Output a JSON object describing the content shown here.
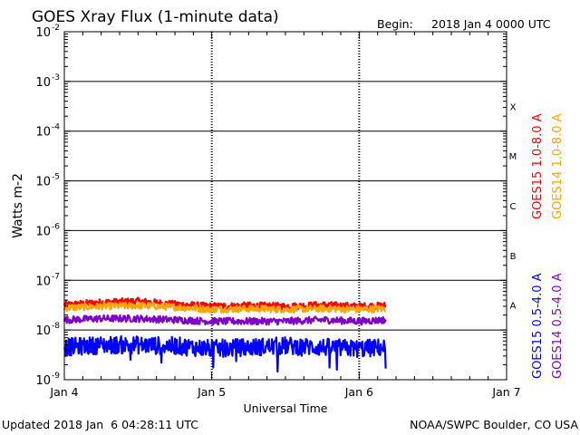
{
  "header": {
    "title": "GOES Xray Flux (1-minute data)",
    "begin_label": "Begin:",
    "begin_value": "2018 Jan 4 0000 UTC"
  },
  "footer": {
    "updated": "Updated 2018 Jan  6 04:28:11 UTC",
    "credit": "NOAA/SWPC Boulder, CO USA"
  },
  "legend": {
    "right_group_1": [
      {
        "text": "GOES15 1.0-8.0 A",
        "color": "#ff0000"
      },
      {
        "text": "GOES14 1.0-8.0 A",
        "color": "#ffa500"
      }
    ],
    "right_group_2": [
      {
        "text": "GOES15 0.5-4.0 A",
        "color": "#0000ff"
      },
      {
        "text": "GOES14 0.5-4.0 A",
        "color": "#7f00c8"
      }
    ]
  },
  "chart_data": {
    "type": "line",
    "title": "GOES Xray Flux (1-minute data)",
    "xlabel": "Universal Time",
    "ylabel": "Watts m-2",
    "x_tick_labels": [
      "Jan 4",
      "Jan 5",
      "Jan 6",
      "Jan 7"
    ],
    "xlim_days": [
      0,
      3
    ],
    "y_scale": "log",
    "ylim": [
      1e-09,
      0.01
    ],
    "y_ticks": [
      {
        "base": "10",
        "exp": "-9",
        "value": 1e-09
      },
      {
        "base": "10",
        "exp": "-8",
        "value": 1e-08
      },
      {
        "base": "10",
        "exp": "-7",
        "value": 1e-07
      },
      {
        "base": "10",
        "exp": "-6",
        "value": 1e-06
      },
      {
        "base": "10",
        "exp": "-5",
        "value": 1e-05
      },
      {
        "base": "10",
        "exp": "-4",
        "value": 0.0001
      },
      {
        "base": "10",
        "exp": "-3",
        "value": 0.001
      },
      {
        "base": "10",
        "exp": "-2",
        "value": 0.01
      }
    ],
    "flare_classes": [
      {
        "label": "A",
        "value": 1e-08
      },
      {
        "label": "B",
        "value": 1e-07
      },
      {
        "label": "C",
        "value": 1e-06
      },
      {
        "label": "M",
        "value": 1e-05
      },
      {
        "label": "X",
        "value": 0.0001
      }
    ],
    "series": [
      {
        "name": "GOES15 1.0-8.0 A",
        "color": "#ff0000",
        "x": [
          0,
          0.25,
          0.5,
          0.75,
          1.0,
          1.25,
          1.5,
          1.75,
          2.0,
          2.18
        ],
        "y": [
          3.2e-08,
          3.6e-08,
          3.8e-08,
          3.3e-08,
          3e-08,
          3.1e-08,
          3e-08,
          3.2e-08,
          3e-08,
          3.1e-08
        ]
      },
      {
        "name": "GOES14 1.0-8.0 A",
        "color": "#ffa500",
        "x": [
          0,
          0.25,
          0.5,
          0.75,
          1.0,
          1.25,
          1.5,
          1.75,
          2.0,
          2.18
        ],
        "y": [
          2.8e-08,
          3e-08,
          3.1e-08,
          2.9e-08,
          2.6e-08,
          2.7e-08,
          2.6e-08,
          2.7e-08,
          2.6e-08,
          2.7e-08
        ]
      },
      {
        "name": "GOES14 0.5-4.0 A",
        "color": "#7f00c8",
        "x": [
          0,
          0.25,
          0.5,
          0.75,
          1.0,
          1.25,
          1.5,
          1.75,
          2.0,
          2.18
        ],
        "y": [
          1.6e-08,
          1.7e-08,
          1.7e-08,
          1.6e-08,
          1.5e-08,
          1.5e-08,
          1.5e-08,
          1.6e-08,
          1.5e-08,
          1.6e-08
        ]
      },
      {
        "name": "GOES15 0.5-4.0 A",
        "color": "#0000ff",
        "x": [
          0,
          0.25,
          0.5,
          0.75,
          1.0,
          1.25,
          1.5,
          1.75,
          2.0,
          2.18
        ],
        "y": [
          4.5e-09,
          5e-09,
          5e-09,
          4.8e-09,
          4.2e-09,
          4.5e-09,
          4.8e-09,
          4.5e-09,
          4.2e-09,
          4.5e-09
        ]
      }
    ]
  }
}
